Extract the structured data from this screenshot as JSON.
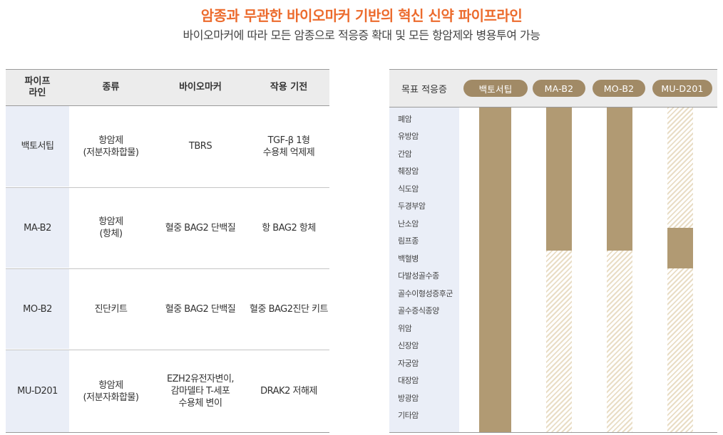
{
  "header": {
    "title": "암종과 무관한 바이오마커 기반의 혁신 신약 파이프라인",
    "subtitle": "바이오마커에 따라 모든 암종으로 적응증 확대 및 모든 항암제와 병용투여 가능"
  },
  "table": {
    "headers": [
      "파이프\n라인",
      "종류",
      "바이오마커",
      "작용 기전"
    ],
    "rows": [
      {
        "name": "백토서팁",
        "type": "항암제\n(저분자화합물)",
        "biomarker": "TBRS",
        "mechanism": "TGF-β 1형\n수용체 억제제"
      },
      {
        "name": "MA-B2",
        "type": "항암제\n(항체)",
        "biomarker": "혈중 BAG2 단백질",
        "mechanism": "항 BAG2 항체"
      },
      {
        "name": "MO-B2",
        "type": "진단키트",
        "biomarker": "혈중 BAG2 단백질",
        "mechanism": "혈중 BAG2진단 키트"
      },
      {
        "name": "MU-D201",
        "type": "항암제\n(저분자화합물)",
        "biomarker": "EZH2유전자변이,\n감마델타 T-세포\n수용체 변이",
        "mechanism": "DRAK2 저해제"
      }
    ]
  },
  "chart": {
    "header_label": "목표 적응증",
    "pipelines": [
      "백토서팁",
      "MA-B2",
      "MO-B2",
      "MU-D201"
    ],
    "indications": [
      "폐암",
      "유방암",
      "간암",
      "췌장암",
      "식도암",
      "두경부암",
      "난소암",
      "림프종",
      "백혈병",
      "다발성골수종",
      "골수이형성증후군",
      "골수증식종양",
      "위암",
      "신장암",
      "자궁암",
      "대장암",
      "방광암",
      "기타암"
    ],
    "colors": {
      "solid": "#b19a73",
      "hatch": "#e9ddc5",
      "pill": "#a18a66"
    }
  },
  "chart_data": {
    "type": "table",
    "columns": [
      "백토서팁",
      "MA-B2",
      "MO-B2",
      "MU-D201"
    ],
    "rows": [
      "폐암",
      "유방암",
      "간암",
      "췌장암",
      "식도암",
      "두경부암",
      "난소암",
      "림프종",
      "백혈병",
      "다발성골수종",
      "골수이형성증후군",
      "골수증식종양",
      "위암",
      "신장암",
      "자궁암",
      "대장암",
      "방광암",
      "기타암"
    ],
    "segments": [
      {
        "pipeline": "백토서팁",
        "solid": [
          "폐암",
          "기타암"
        ]
      },
      {
        "pipeline": "MA-B2",
        "solid": [
          "폐암",
          "림프종"
        ],
        "hatched": [
          "백혈병",
          "기타암"
        ]
      },
      {
        "pipeline": "MO-B2",
        "solid": [
          "폐암",
          "림프종"
        ],
        "hatched": [
          "백혈병",
          "기타암"
        ]
      },
      {
        "pipeline": "MU-D201",
        "hatched": [
          "폐암",
          "난소암"
        ],
        "solid": [
          "림프종",
          "백혈병"
        ],
        "hatched_2": [
          "다발성골수종",
          "기타암"
        ]
      }
    ]
  }
}
